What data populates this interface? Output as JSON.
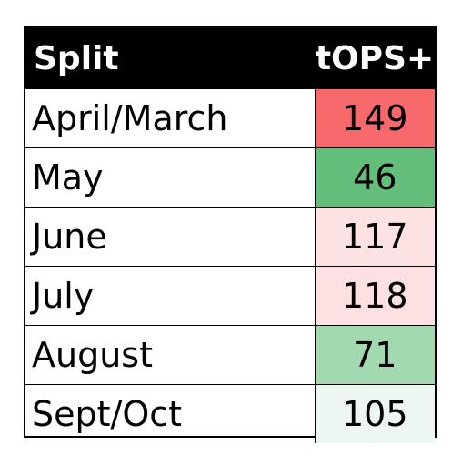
{
  "chart_data": {
    "type": "table",
    "columns": [
      "Split",
      "tOPS+"
    ],
    "rows": [
      {
        "split": "April/March",
        "tops": "149",
        "color": "#f8696b"
      },
      {
        "split": "May",
        "tops": "46",
        "color": "#63be7b"
      },
      {
        "split": "June",
        "tops": "117",
        "color": "#fde2e4"
      },
      {
        "split": "July",
        "tops": "118",
        "color": "#fde0e2"
      },
      {
        "split": "August",
        "tops": "71",
        "color": "#a3d9b0"
      },
      {
        "split": "Sept/Oct",
        "tops": "105",
        "color": "#eef6f1"
      }
    ]
  }
}
